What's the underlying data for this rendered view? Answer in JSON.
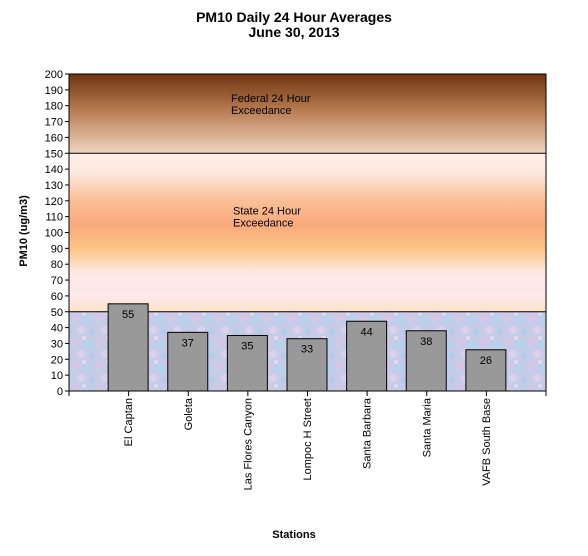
{
  "chart_data": {
    "type": "bar",
    "title": "PM10 Daily 24 Hour Averages",
    "subtitle": "June 30, 2013",
    "xlabel": "Stations",
    "ylabel": "PM10 (ug/m3)",
    "ylim": [
      0,
      200
    ],
    "ytick_step": 10,
    "categories": [
      "El Captan",
      "Goleta",
      "Las Flores Canyon",
      "Lompoc H Street",
      "Santa Barbara",
      "Santa Maria",
      "VAFB South Base"
    ],
    "values": [
      55,
      37,
      35,
      33,
      44,
      38,
      26
    ],
    "bands": [
      {
        "from": 150,
        "to": 200,
        "label_line1": "Federal 24 Hour",
        "label_line2": "Exceedance",
        "color": "#b07a52"
      },
      {
        "from": 50,
        "to": 150,
        "label_line1": "State 24 Hour",
        "label_line2": "Exceedance",
        "color": "#fcd4a6"
      },
      {
        "from": 0,
        "to": 50,
        "color": "#c9cbea"
      }
    ],
    "bar_color": "#999999",
    "grid": false,
    "legend": "none"
  }
}
